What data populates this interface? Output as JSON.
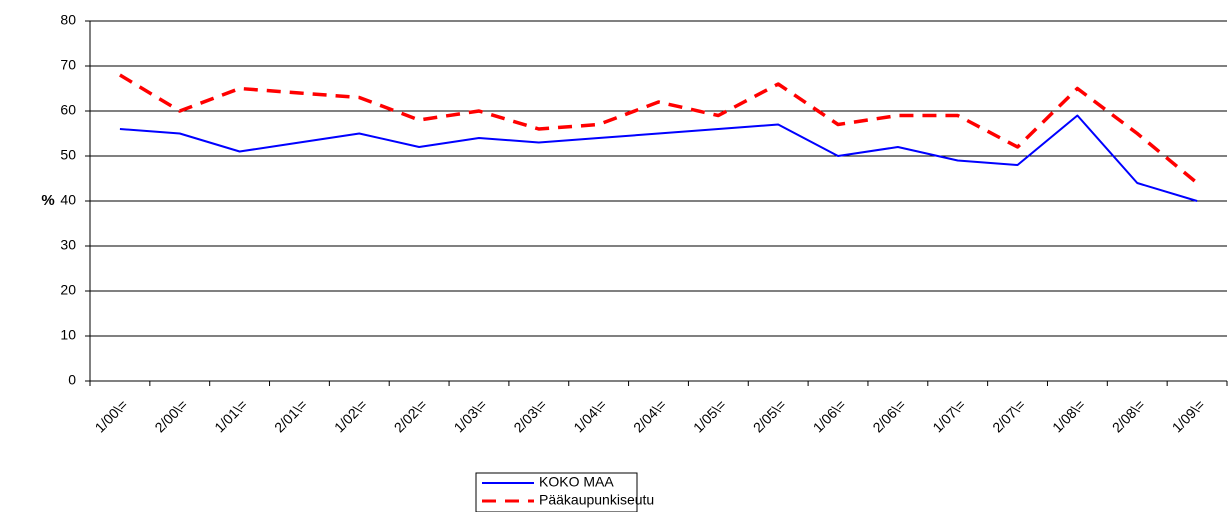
{
  "chart_data": {
    "type": "line",
    "y_label": "%",
    "categories": [
      "1/00\\=",
      "2/00\\=",
      "1/01\\=",
      "2/01\\=",
      "1/02\\=",
      "2/02\\=",
      "1/03\\=",
      "2/03\\=",
      "1/04\\=",
      "2/04\\=",
      "1/05\\=",
      "2/05\\=",
      "1/06\\=",
      "2/06\\=",
      "1/07\\=",
      "2/07\\=",
      "1/08\\=",
      "2/08\\=",
      "1/09\\="
    ],
    "series": [
      {
        "name": "KOKO MAA",
        "color": "#0000ff",
        "dashed": false,
        "values": [
          56,
          55,
          51,
          53,
          55,
          52,
          54,
          53,
          54,
          55,
          56,
          57,
          50,
          52,
          49,
          48,
          59,
          44,
          40
        ]
      },
      {
        "name": "Pääkaupunkiseutu",
        "color": "#ff0000",
        "dashed": true,
        "values": [
          68,
          60,
          65,
          64,
          63,
          58,
          60,
          56,
          57,
          62,
          59,
          66,
          57,
          59,
          59,
          52,
          65,
          55,
          44
        ]
      }
    ],
    "ylim": [
      0,
      80
    ],
    "yticks": [
      0,
      10,
      20,
      30,
      40,
      50,
      60,
      70,
      80
    ],
    "grid": true,
    "legend": "bottom"
  }
}
